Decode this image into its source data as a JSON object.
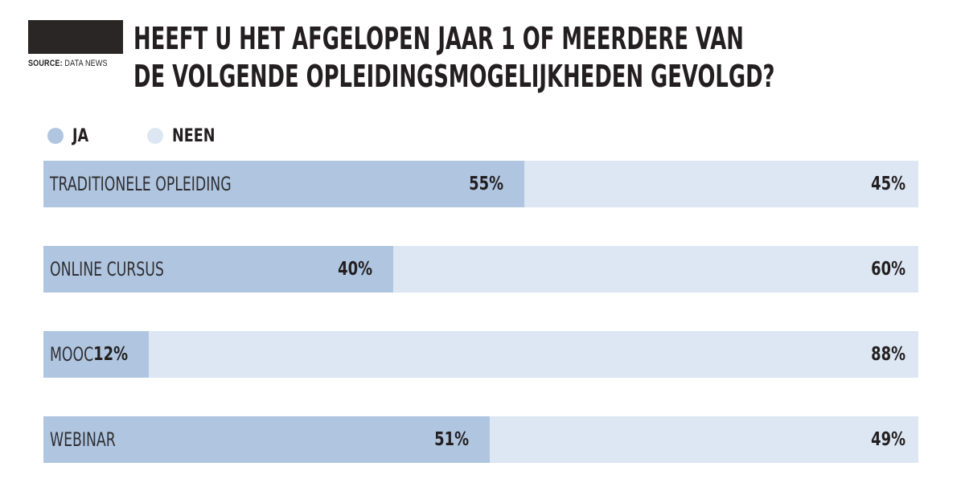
{
  "source": {
    "label": "SOURCE:",
    "name": "DATA NEWS"
  },
  "title_line1": "HEEFT U HET AFGELOPEN JAAR 1 OF MEERDERE VAN",
  "title_line2": "DE VOLGENDE OPLEIDINGSMOGELIJKHEDEN GEVOLGD?",
  "colors": {
    "ja": "#b0c6e0",
    "neen": "#dde7f3",
    "logo": "#2a2626"
  },
  "chart_data": {
    "type": "bar",
    "stacked": true,
    "orientation": "horizontal",
    "title": "HEEFT U HET AFGELOPEN JAAR 1 OF MEERDERE VAN DE VOLGENDE OPLEIDINGSMOGELIJKHEDEN GEVOLGD?",
    "legend_position": "top-left",
    "categories": [
      "TRADITIONELE OPLEIDING",
      "ONLINE CURSUS",
      "MOOC",
      "WEBINAR"
    ],
    "series": [
      {
        "name": "JA",
        "values": [
          55,
          40,
          12,
          51
        ],
        "labels": [
          "55%",
          "40%",
          "12%",
          "51%"
        ]
      },
      {
        "name": "NEEN",
        "values": [
          45,
          60,
          88,
          49
        ],
        "labels": [
          "45%",
          "60%",
          "88%",
          "49%"
        ]
      }
    ],
    "xlim": [
      0,
      100
    ],
    "grid": false
  }
}
